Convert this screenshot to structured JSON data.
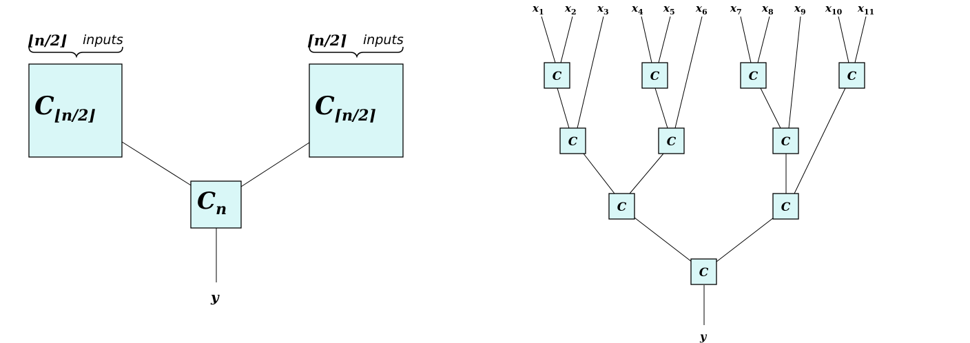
{
  "left_diagram": {
    "floor_input_label": "⌊n/2⌋",
    "floor_inputs_word": "inputs",
    "ceil_input_label": "⌈n/2⌉",
    "ceil_inputs_word": "inputs",
    "box_floor": {
      "main": "C",
      "sub": "⌊n/2⌋"
    },
    "box_ceil": {
      "main": "C",
      "sub": "⌈n/2⌉"
    },
    "box_n": {
      "main": "C",
      "sub": "n"
    },
    "output": "y"
  },
  "right_diagram": {
    "inputs": [
      {
        "base": "x",
        "sub": "1"
      },
      {
        "base": "x",
        "sub": "2"
      },
      {
        "base": "x",
        "sub": "3"
      },
      {
        "base": "x",
        "sub": "4"
      },
      {
        "base": "x",
        "sub": "5"
      },
      {
        "base": "x",
        "sub": "6"
      },
      {
        "base": "x",
        "sub": "7"
      },
      {
        "base": "x",
        "sub": "8"
      },
      {
        "base": "x",
        "sub": "9"
      },
      {
        "base": "x",
        "sub": "10"
      },
      {
        "base": "x",
        "sub": "11"
      }
    ],
    "gate_label": "C",
    "output": "y"
  }
}
